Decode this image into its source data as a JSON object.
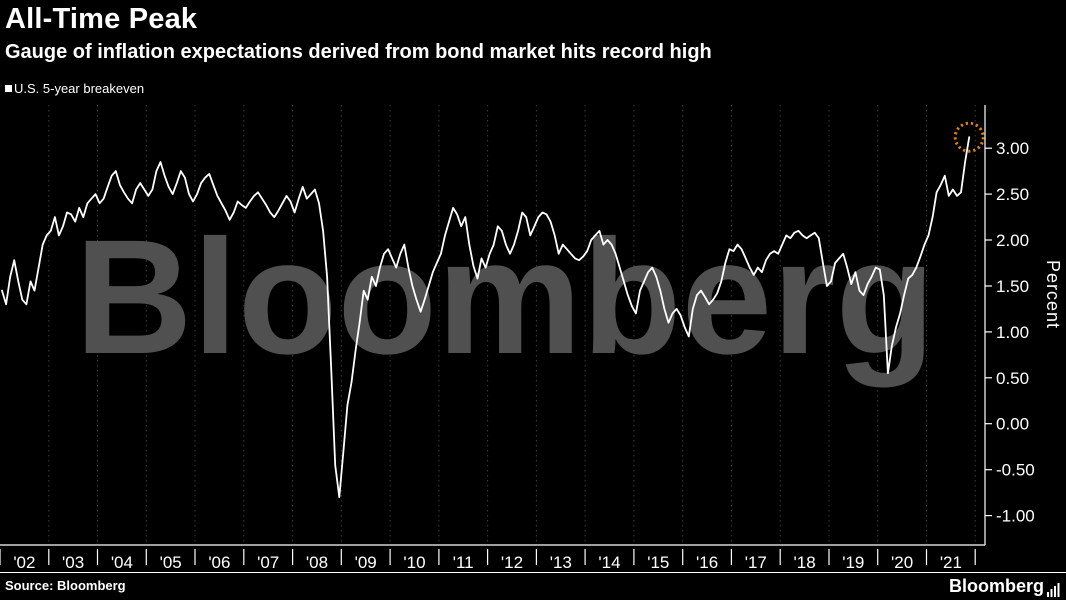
{
  "watermark": "Bloomberg",
  "footer": {
    "source": "Source: Bloomberg",
    "logo": "Bloomberg"
  },
  "colors": {
    "background": "#000000",
    "line": "#ffffff",
    "accent_orange": "#DD830D",
    "watermark_gray": "#505050",
    "grid_gray": "#3d3d3d"
  },
  "chart_data": {
    "type": "line",
    "title": "All-Time Peak",
    "subtitle": "Gauge of inflation expectations derived from bond market hits record high",
    "ylabel": "Percent",
    "ylim": [
      -1.32,
      3.47
    ],
    "yticks": [
      "3.00",
      "2.50",
      "2.00",
      "1.50",
      "1.00",
      "0.50",
      "0.00",
      "-0.50",
      "-1.00"
    ],
    "x_start": "2002-01",
    "x_frequency": "monthly",
    "xtick_labels": [
      "'02",
      "'03",
      "'04",
      "'05",
      "'06",
      "'07",
      "'08",
      "'09",
      "'10",
      "'11",
      "'12",
      "'13",
      "'14",
      "'15",
      "'16",
      "'17",
      "'18",
      "'19",
      "'20",
      "'21"
    ],
    "grid": "vertical-dotted",
    "legend_position": "top-left",
    "series": [
      {
        "name": "U.S. 5-year breakeven",
        "color": "#ffffff",
        "values": [
          1.45,
          1.3,
          1.6,
          1.78,
          1.55,
          1.35,
          1.3,
          1.55,
          1.45,
          1.7,
          1.95,
          2.05,
          2.1,
          2.25,
          2.05,
          2.15,
          2.3,
          2.28,
          2.2,
          2.35,
          2.25,
          2.4,
          2.45,
          2.5,
          2.4,
          2.45,
          2.58,
          2.7,
          2.75,
          2.6,
          2.52,
          2.45,
          2.4,
          2.55,
          2.62,
          2.55,
          2.48,
          2.55,
          2.75,
          2.85,
          2.7,
          2.58,
          2.5,
          2.62,
          2.75,
          2.68,
          2.5,
          2.42,
          2.5,
          2.62,
          2.68,
          2.72,
          2.6,
          2.48,
          2.4,
          2.32,
          2.22,
          2.3,
          2.42,
          2.38,
          2.35,
          2.42,
          2.48,
          2.52,
          2.45,
          2.38,
          2.3,
          2.25,
          2.32,
          2.4,
          2.48,
          2.42,
          2.3,
          2.45,
          2.58,
          2.45,
          2.5,
          2.55,
          2.4,
          2.1,
          1.6,
          0.6,
          -0.45,
          -0.8,
          -0.3,
          0.2,
          0.45,
          0.8,
          1.1,
          1.45,
          1.35,
          1.6,
          1.5,
          1.7,
          1.85,
          1.9,
          1.8,
          1.7,
          1.85,
          1.95,
          1.7,
          1.5,
          1.35,
          1.22,
          1.35,
          1.5,
          1.65,
          1.75,
          1.85,
          2.05,
          2.2,
          2.35,
          2.28,
          2.15,
          2.25,
          1.95,
          1.72,
          1.58,
          1.8,
          1.7,
          1.85,
          1.95,
          2.15,
          2.1,
          1.95,
          1.85,
          1.95,
          2.1,
          2.3,
          2.25,
          2.05,
          2.15,
          2.25,
          2.3,
          2.28,
          2.2,
          2.05,
          1.85,
          1.95,
          1.9,
          1.85,
          1.8,
          1.78,
          1.82,
          1.88,
          2.0,
          2.05,
          2.1,
          1.95,
          2.0,
          1.95,
          1.85,
          1.7,
          1.55,
          1.4,
          1.28,
          1.2,
          1.45,
          1.55,
          1.65,
          1.7,
          1.6,
          1.45,
          1.25,
          1.1,
          1.2,
          1.25,
          1.18,
          1.05,
          0.95,
          1.25,
          1.4,
          1.45,
          1.38,
          1.3,
          1.35,
          1.42,
          1.55,
          1.75,
          1.9,
          1.88,
          1.95,
          1.9,
          1.8,
          1.7,
          1.62,
          1.7,
          1.65,
          1.78,
          1.85,
          1.88,
          1.85,
          1.95,
          2.05,
          2.02,
          2.08,
          2.1,
          2.05,
          2.02,
          2.05,
          2.08,
          2.02,
          1.75,
          1.5,
          1.55,
          1.75,
          1.8,
          1.85,
          1.7,
          1.52,
          1.65,
          1.45,
          1.4,
          1.52,
          1.6,
          1.7,
          1.68,
          1.4,
          0.55,
          0.85,
          1.05,
          1.2,
          1.4,
          1.58,
          1.62,
          1.7,
          1.82,
          1.95,
          2.05,
          2.25,
          2.52,
          2.6,
          2.7,
          2.48,
          2.55,
          2.48,
          2.52,
          2.85,
          3.12
        ]
      }
    ],
    "annotation": {
      "shape": "dotted-circle",
      "color": "#DD830D",
      "anchor": "last-point",
      "meaning": "record high highlight"
    }
  }
}
